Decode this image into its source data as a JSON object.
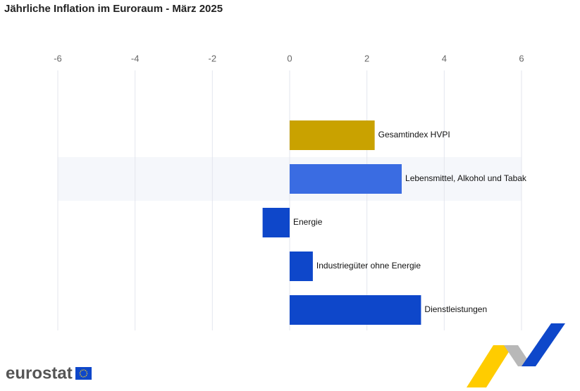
{
  "brand": "eurostat",
  "chart_data": {
    "type": "hbar",
    "title": "Jährliche Inflation im Euroraum - März 2025",
    "categories": [
      "Gesamtindex HVPI",
      "Lebensmittel, Alkohol und Tabak",
      "Energie",
      "Industriegüter ohne Energie",
      "Dienstleistungen"
    ],
    "values": [
      2.2,
      2.9,
      -0.7,
      0.6,
      3.4
    ],
    "colors": [
      "#c9a200",
      "#3a6ce2",
      "#0e47ca",
      "#0e47ca",
      "#0e47ca"
    ],
    "xlim": [
      -6,
      6
    ],
    "xticks": [
      -6,
      -4,
      -2,
      0,
      2,
      4,
      6
    ],
    "grid": true
  }
}
